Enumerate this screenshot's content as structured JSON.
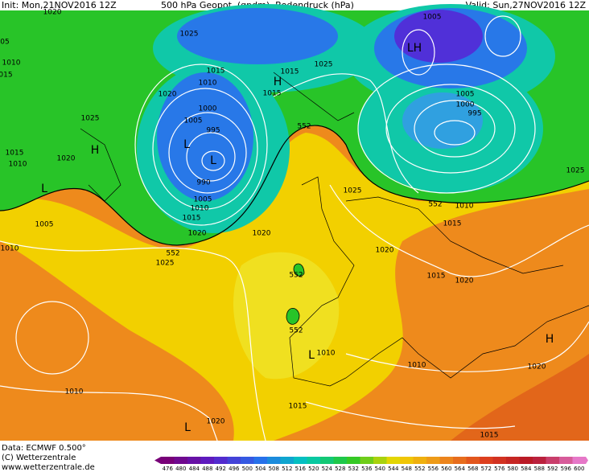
{
  "header": {
    "init": "Init: Mon,21NOV2016 12Z",
    "title": "500 hPa Geopot. (gpdm), Bodendruck (hPa)",
    "valid": "Valid: Sun,27NOV2016 12Z"
  },
  "map_labels": [
    "1020",
    "1025",
    "05",
    "1010",
    "015",
    "1015",
    "1010",
    "1020",
    "1000",
    "1005",
    "995",
    "990",
    "1005",
    "1010",
    "1015",
    "1020",
    "1025",
    "1015",
    "1010",
    "1020",
    "1005",
    "1010",
    "1025",
    "1020",
    "552",
    "552",
    "1015",
    "1015",
    "1025",
    "1005",
    "1005",
    "1000",
    "995",
    "1025",
    "1025",
    "552",
    "1010",
    "1015",
    "1020",
    "1015",
    "1020",
    "552",
    "552",
    "1010",
    "1010",
    "1020",
    "1010",
    "1020",
    "1015",
    "1015",
    "H",
    "H",
    "H",
    "L",
    "L",
    "L",
    "L",
    "L",
    "LH"
  ],
  "footer": {
    "data": "Data: ECMWF  0.500°",
    "copyright": "(C) Wetterzentrale",
    "url": "www.wetterzentrale.de"
  },
  "color_scale": {
    "ticks": [
      476,
      480,
      484,
      488,
      492,
      496,
      500,
      504,
      508,
      512,
      516,
      520,
      524,
      528,
      532,
      536,
      540,
      544,
      548,
      552,
      556,
      560,
      564,
      568,
      572,
      576,
      580,
      584,
      588,
      592,
      596,
      600
    ]
  }
}
